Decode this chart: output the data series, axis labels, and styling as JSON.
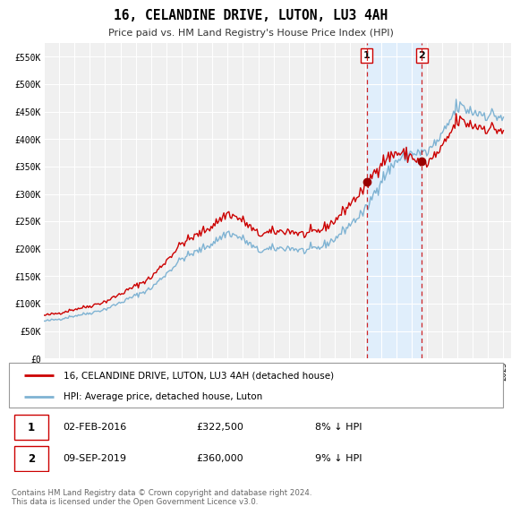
{
  "title": "16, CELANDINE DRIVE, LUTON, LU3 4AH",
  "subtitle": "Price paid vs. HM Land Registry's House Price Index (HPI)",
  "ylim": [
    0,
    575000
  ],
  "yticks": [
    0,
    50000,
    100000,
    150000,
    200000,
    250000,
    300000,
    350000,
    400000,
    450000,
    500000,
    550000
  ],
  "ytick_labels": [
    "£0",
    "£50K",
    "£100K",
    "£150K",
    "£200K",
    "£250K",
    "£300K",
    "£350K",
    "£400K",
    "£450K",
    "£500K",
    "£550K"
  ],
  "hpi_color": "#7fb3d3",
  "hpi_fill_color": "#d6e8f5",
  "price_color": "#cc0000",
  "marker_color": "#990000",
  "vline_color": "#cc0000",
  "vfill_color": "#ddeeff",
  "bg_color": "#ffffff",
  "plot_bg": "#f0f0f0",
  "grid_color": "#ffffff",
  "legend_label_price": "16, CELANDINE DRIVE, LUTON, LU3 4AH (detached house)",
  "legend_label_hpi": "HPI: Average price, detached house, Luton",
  "annotation1_label": "1",
  "annotation1_date": "02-FEB-2016",
  "annotation1_price": "£322,500",
  "annotation1_pct": "8% ↓ HPI",
  "annotation2_label": "2",
  "annotation2_date": "09-SEP-2019",
  "annotation2_price": "£360,000",
  "annotation2_pct": "9% ↓ HPI",
  "footnote": "Contains HM Land Registry data © Crown copyright and database right 2024.\nThis data is licensed under the Open Government Licence v3.0.",
  "transaction1_x": 2016.083,
  "transaction1_y": 322500,
  "transaction2_x": 2019.667,
  "transaction2_y": 360000,
  "xmin": 1995.0,
  "xmax": 2025.5,
  "xticks": [
    1995,
    1996,
    1997,
    1998,
    1999,
    2000,
    2001,
    2002,
    2003,
    2004,
    2005,
    2006,
    2007,
    2008,
    2009,
    2010,
    2011,
    2012,
    2013,
    2014,
    2015,
    2016,
    2017,
    2018,
    2019,
    2020,
    2021,
    2022,
    2023,
    2024,
    2025
  ]
}
